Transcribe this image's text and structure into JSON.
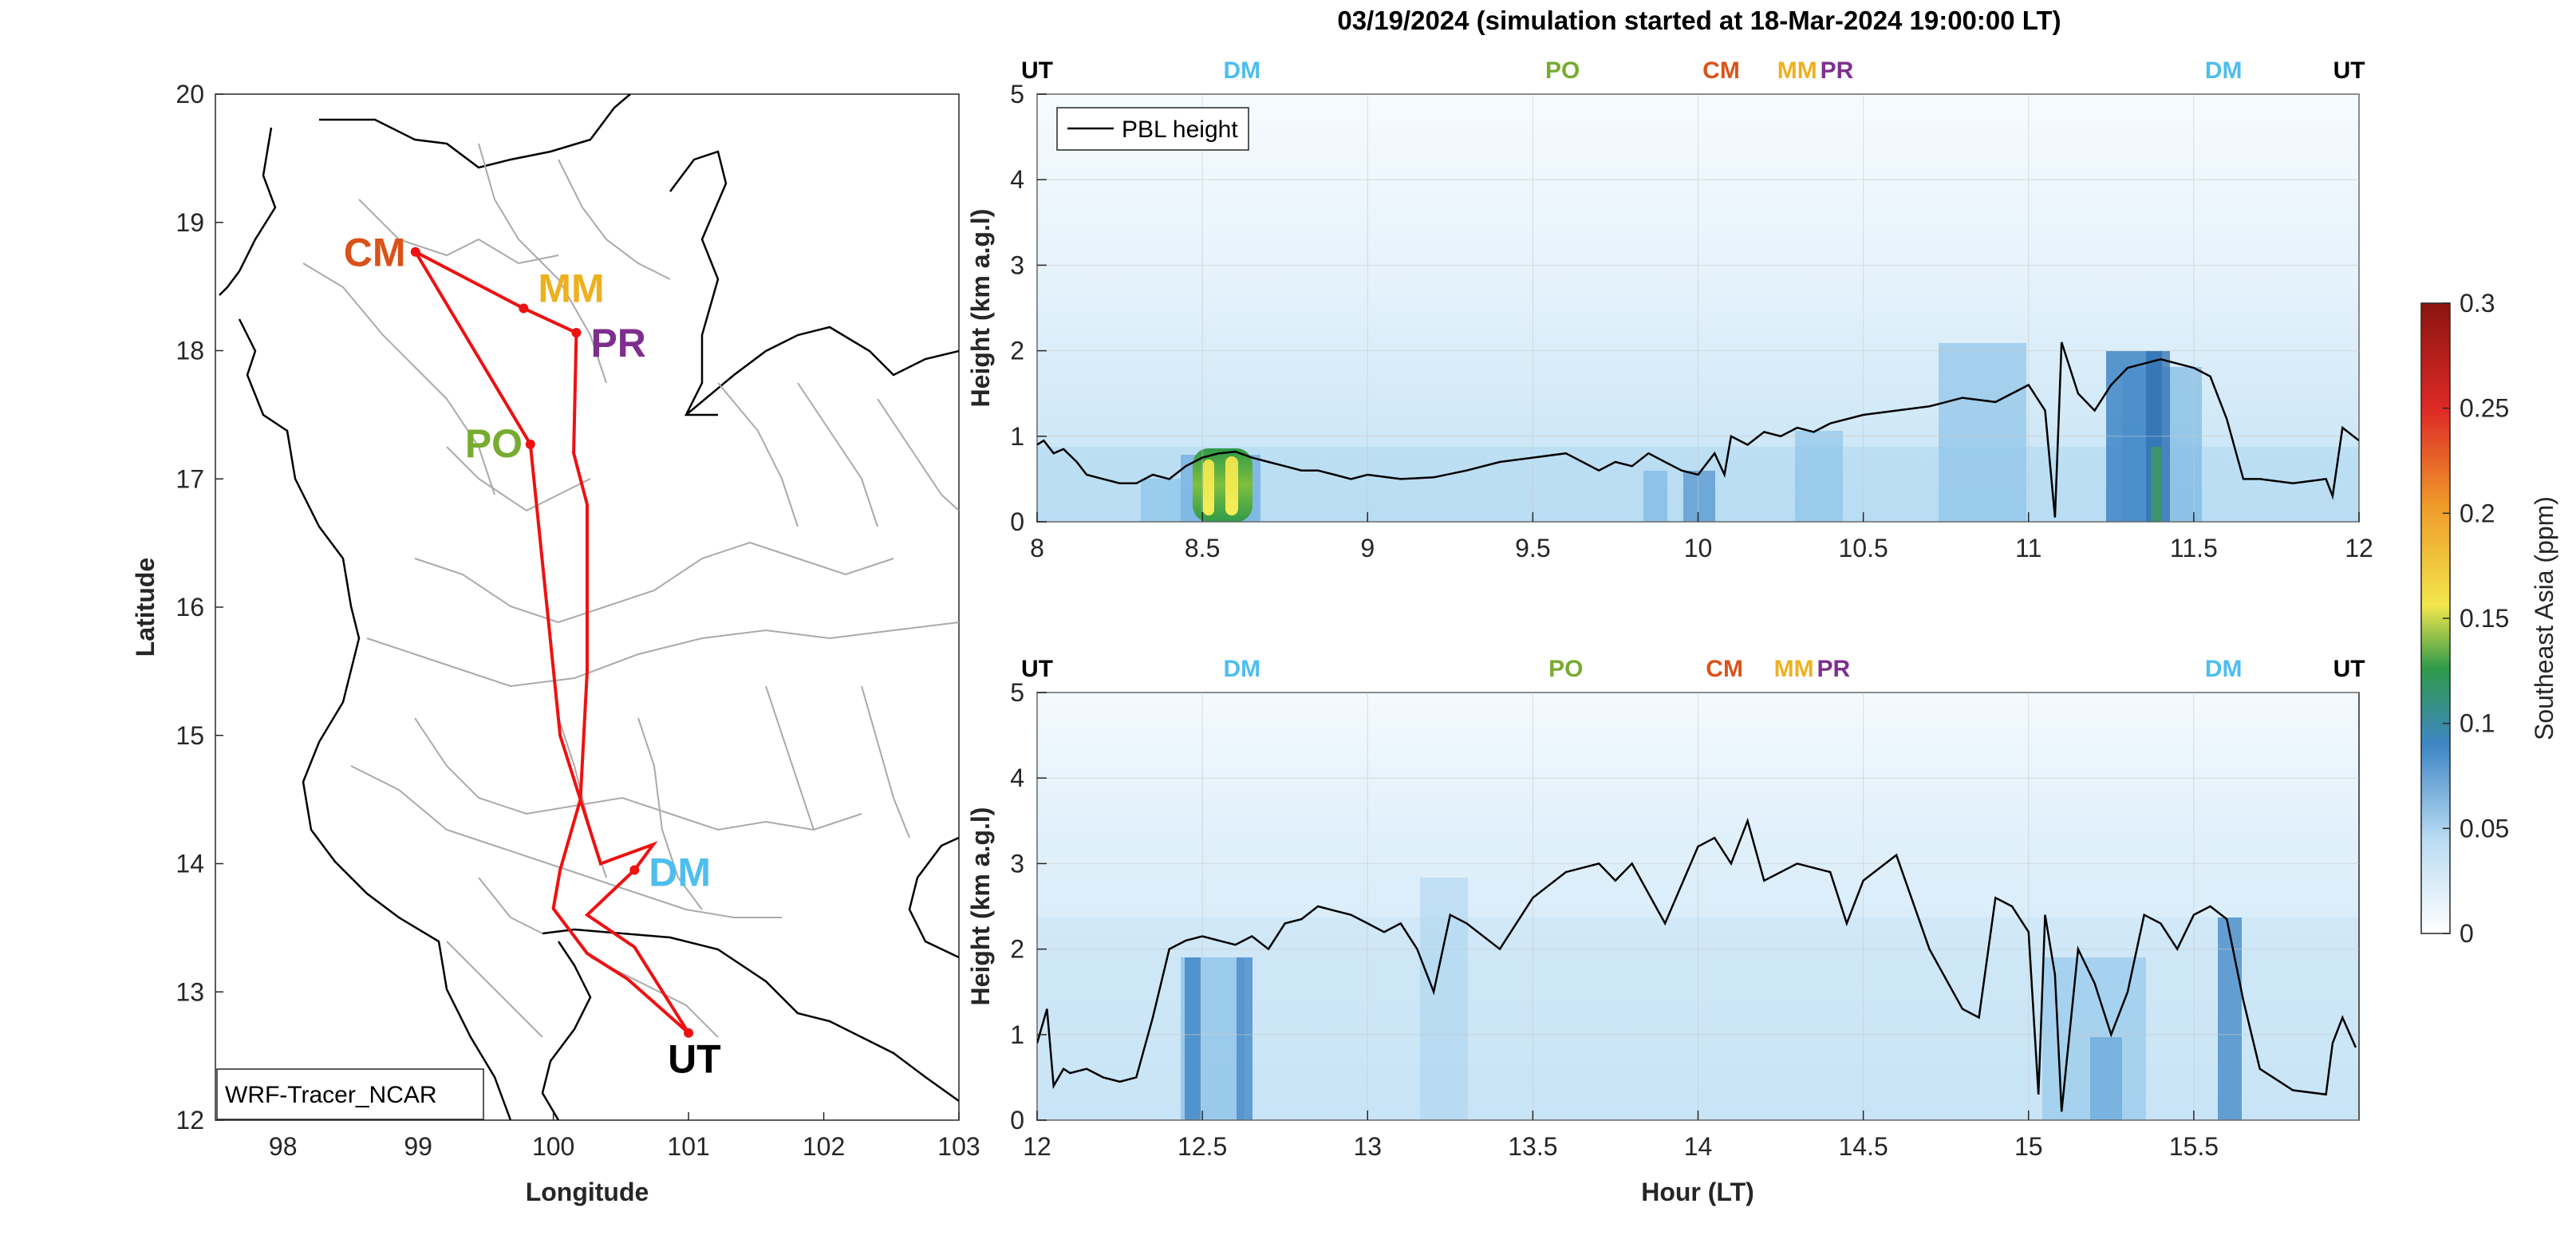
{
  "title": "03/19/2024 (simulation started at 18-Mar-2024 19:00:00 LT)",
  "colors": {
    "UT": "#000000",
    "DM": "#4DBEEE",
    "PO": "#77AC30",
    "CM": "#D95319",
    "MM": "#EDB120",
    "PR": "#7E2F8E",
    "track": "#ee1111"
  },
  "chart_data": [
    {
      "type": "map",
      "xlabel": "Longitude",
      "ylabel": "Latitude",
      "xlim": [
        97.5,
        103
      ],
      "ylim": [
        12,
        20
      ],
      "xticks": [
        98,
        99,
        100,
        101,
        102,
        103
      ],
      "yticks": [
        12,
        13,
        14,
        15,
        16,
        17,
        18,
        19,
        20
      ],
      "legend": "WRF-Tracer_NCAR",
      "sites": [
        {
          "name": "CM",
          "lon": 98.98,
          "lat": 18.77
        },
        {
          "name": "MM",
          "lon": 99.78,
          "lat": 18.33
        },
        {
          "name": "PR",
          "lon": 100.17,
          "lat": 18.14
        },
        {
          "name": "PO",
          "lon": 99.83,
          "lat": 17.27
        },
        {
          "name": "DM",
          "lon": 100.6,
          "lat": 13.95
        },
        {
          "name": "UT",
          "lon": 101.0,
          "lat": 12.68
        }
      ],
      "track": [
        [
          101.0,
          12.68
        ],
        [
          100.55,
          13.1
        ],
        [
          100.25,
          13.3
        ],
        [
          100.0,
          13.65
        ],
        [
          100.05,
          13.95
        ],
        [
          100.2,
          14.5
        ],
        [
          100.25,
          15.5
        ],
        [
          100.25,
          16.8
        ],
        [
          100.15,
          17.2
        ],
        [
          100.17,
          18.14
        ],
        [
          99.78,
          18.33
        ],
        [
          98.98,
          18.77
        ],
        [
          99.83,
          17.27
        ],
        [
          100.05,
          15.0
        ],
        [
          100.35,
          14.0
        ],
        [
          100.74,
          14.15
        ],
        [
          100.6,
          13.95
        ],
        [
          100.25,
          13.6
        ],
        [
          100.6,
          13.35
        ],
        [
          101.0,
          12.68
        ]
      ]
    },
    {
      "type": "heatmap",
      "xlabel": "",
      "ylabel": "Height (km a.g.l)",
      "xlim": [
        8,
        12
      ],
      "ylim": [
        0,
        5
      ],
      "xticks": [
        "8",
        "8.5",
        "9",
        "9.5",
        "10",
        "10.5",
        "11",
        "11.5",
        "12"
      ],
      "yticks": [
        "0",
        "1",
        "2",
        "3",
        "4",
        "5"
      ],
      "legend": "PBL height",
      "legend_position": "top-left",
      "top_labels": [
        {
          "name": "UT",
          "x": 8.0
        },
        {
          "name": "DM",
          "x": 8.62
        },
        {
          "name": "PO",
          "x": 9.59
        },
        {
          "name": "CM",
          "x": 10.07
        },
        {
          "name": "MM",
          "x": 10.3
        },
        {
          "name": "PR",
          "x": 10.42
        },
        {
          "name": "DM",
          "x": 11.59
        },
        {
          "name": "UT",
          "x": 11.97
        }
      ],
      "pbl": {
        "x": [
          8.0,
          8.02,
          8.05,
          8.08,
          8.12,
          8.15,
          8.2,
          8.25,
          8.3,
          8.35,
          8.4,
          8.45,
          8.5,
          8.55,
          8.6,
          8.65,
          8.7,
          8.75,
          8.8,
          8.85,
          8.9,
          8.95,
          9.0,
          9.1,
          9.2,
          9.3,
          9.4,
          9.5,
          9.6,
          9.7,
          9.75,
          9.8,
          9.85,
          9.9,
          9.95,
          10.0,
          10.05,
          10.08,
          10.1,
          10.15,
          10.2,
          10.25,
          10.3,
          10.35,
          10.4,
          10.5,
          10.6,
          10.7,
          10.8,
          10.9,
          11.0,
          11.05,
          11.08,
          11.1,
          11.15,
          11.2,
          11.25,
          11.3,
          11.35,
          11.4,
          11.45,
          11.5,
          11.55,
          11.6,
          11.65,
          11.7,
          11.8,
          11.9,
          11.92,
          11.95,
          12.0
        ],
        "y": [
          0.9,
          0.95,
          0.8,
          0.85,
          0.7,
          0.55,
          0.5,
          0.45,
          0.45,
          0.55,
          0.5,
          0.65,
          0.75,
          0.8,
          0.82,
          0.75,
          0.7,
          0.65,
          0.6,
          0.6,
          0.55,
          0.5,
          0.55,
          0.5,
          0.52,
          0.6,
          0.7,
          0.75,
          0.8,
          0.6,
          0.7,
          0.65,
          0.8,
          0.7,
          0.6,
          0.55,
          0.8,
          0.55,
          1.0,
          0.9,
          1.05,
          1.0,
          1.1,
          1.05,
          1.15,
          1.25,
          1.3,
          1.35,
          1.45,
          1.4,
          1.6,
          1.3,
          0.05,
          2.1,
          1.5,
          1.3,
          1.6,
          1.8,
          1.85,
          1.9,
          1.85,
          1.8,
          1.7,
          1.2,
          0.5,
          0.5,
          0.45,
          0.5,
          0.3,
          1.1,
          0.95
        ]
      }
    },
    {
      "type": "heatmap",
      "xlabel": "Hour (LT)",
      "ylabel": "Height (km a.g.l)",
      "xlim": [
        12,
        16
      ],
      "ylim": [
        0,
        5
      ],
      "xticks": [
        "12",
        "12.5",
        "13",
        "13.5",
        "14",
        "14.5",
        "15",
        "15.5"
      ],
      "yticks": [
        "0",
        "1",
        "2",
        "3",
        "4",
        "5"
      ],
      "top_labels": [
        {
          "name": "UT",
          "x": 12.0
        },
        {
          "name": "DM",
          "x": 12.62
        },
        {
          "name": "PO",
          "x": 13.6
        },
        {
          "name": "CM",
          "x": 14.08
        },
        {
          "name": "MM",
          "x": 14.29
        },
        {
          "name": "PR",
          "x": 14.41
        },
        {
          "name": "DM",
          "x": 15.59
        },
        {
          "name": "UT",
          "x": 15.97
        }
      ],
      "pbl": {
        "x": [
          12.0,
          12.03,
          12.05,
          12.08,
          12.1,
          12.15,
          12.2,
          12.25,
          12.3,
          12.35,
          12.4,
          12.45,
          12.5,
          12.55,
          12.6,
          12.65,
          12.7,
          12.75,
          12.8,
          12.85,
          12.9,
          12.95,
          13.0,
          13.05,
          13.1,
          13.15,
          13.2,
          13.25,
          13.3,
          13.4,
          13.5,
          13.6,
          13.7,
          13.75,
          13.8,
          13.9,
          14.0,
          14.05,
          14.1,
          14.15,
          14.2,
          14.3,
          14.4,
          14.45,
          14.5,
          14.6,
          14.7,
          14.8,
          14.85,
          14.9,
          14.95,
          15.0,
          15.03,
          15.05,
          15.08,
          15.1,
          15.15,
          15.2,
          15.25,
          15.3,
          15.35,
          15.4,
          15.45,
          15.5,
          15.55,
          15.6,
          15.65,
          15.7,
          15.8,
          15.9,
          15.92,
          15.95,
          15.99
        ],
        "y": [
          0.9,
          1.3,
          0.4,
          0.6,
          0.55,
          0.6,
          0.5,
          0.45,
          0.5,
          1.2,
          2.0,
          2.1,
          2.15,
          2.1,
          2.05,
          2.15,
          2.0,
          2.3,
          2.35,
          2.5,
          2.45,
          2.4,
          2.3,
          2.2,
          2.3,
          2.0,
          1.5,
          2.4,
          2.3,
          2.0,
          2.6,
          2.9,
          3.0,
          2.8,
          3.0,
          2.3,
          3.2,
          3.3,
          3.0,
          3.5,
          2.8,
          3.0,
          2.9,
          2.3,
          2.8,
          3.1,
          2.0,
          1.3,
          1.2,
          2.6,
          2.5,
          2.2,
          0.3,
          2.4,
          1.7,
          0.1,
          2.0,
          1.6,
          1.0,
          1.5,
          2.4,
          2.3,
          2.0,
          2.4,
          2.5,
          2.35,
          1.4,
          0.6,
          0.35,
          0.3,
          0.9,
          1.2,
          0.85
        ]
      }
    },
    {
      "type": "colorbar",
      "label": "Southeast Asia (ppm)",
      "range": [
        0,
        0.3
      ],
      "ticks": [
        "0",
        "0.05",
        "0.1",
        "0.15",
        "0.2",
        "0.25",
        "0.3"
      ]
    }
  ]
}
